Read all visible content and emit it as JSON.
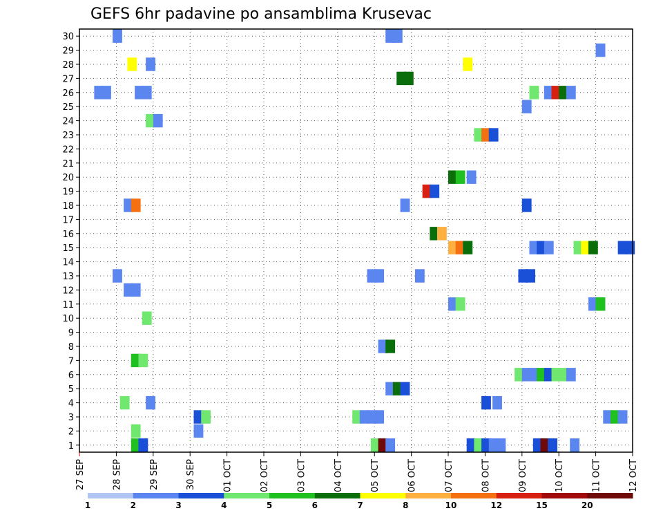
{
  "chart_data": {
    "type": "heatmap",
    "title": "GEFS 6hr padavine po ansamblima Krusevac",
    "x_tick_labels": [
      "27 SEP",
      "28 SEP",
      "29 SEP",
      "30 SEP",
      "01 OCT",
      "02 OCT",
      "03 OCT",
      "04 OCT",
      "05 OCT",
      "06 OCT",
      "07 OCT",
      "08 OCT",
      "09 OCT",
      "10 OCT",
      "11 OCT",
      "12 OCT"
    ],
    "y_tick_labels": [
      "1",
      "2",
      "3",
      "4",
      "5",
      "6",
      "7",
      "8",
      "9",
      "10",
      "11",
      "12",
      "13",
      "14",
      "15",
      "16",
      "17",
      "18",
      "19",
      "20",
      "21",
      "22",
      "23",
      "24",
      "25",
      "26",
      "27",
      "28",
      "29",
      "30"
    ],
    "ylim": [
      1,
      30
    ],
    "grid": true,
    "legend_labels": [
      "1",
      "2",
      "3",
      "4",
      "5",
      "6",
      "7",
      "8",
      "10",
      "12",
      "15",
      "20"
    ],
    "legend_colors": [
      "#b0c4f4",
      "#5b86f0",
      "#1a4fd8",
      "#70e870",
      "#20c020",
      "#0a6e0a",
      "#ffff00",
      "#ffb040",
      "#f57010",
      "#d82010",
      "#a00a0a",
      "#6e0a0a"
    ],
    "cells": [
      [
        0.9,
        30,
        0,
        1
      ],
      [
        8.3,
        30,
        0,
        1
      ],
      [
        8.5,
        30,
        0,
        1
      ],
      [
        14.0,
        29,
        0,
        1
      ],
      [
        1.3,
        28,
        3,
        6
      ],
      [
        1.8,
        28,
        2,
        1
      ],
      [
        10.4,
        28,
        3,
        6
      ],
      [
        8.6,
        27,
        4,
        5
      ],
      [
        8.8,
        27,
        4,
        5
      ],
      [
        0.4,
        26,
        3,
        1
      ],
      [
        0.6,
        26,
        3,
        1
      ],
      [
        1.5,
        26,
        3,
        1
      ],
      [
        1.7,
        26,
        3,
        1
      ],
      [
        12.2,
        26,
        6,
        3
      ],
      [
        12.6,
        26,
        6,
        1
      ],
      [
        12.8,
        26,
        6,
        9
      ],
      [
        13.0,
        26,
        6,
        5
      ],
      [
        13.2,
        26,
        6,
        1
      ],
      [
        12.0,
        25,
        4,
        1
      ],
      [
        1.8,
        24,
        3,
        3
      ],
      [
        2.0,
        24,
        3,
        1
      ],
      [
        10.7,
        23,
        8,
        3
      ],
      [
        10.9,
        23,
        8,
        8
      ],
      [
        11.1,
        23,
        8,
        2
      ],
      [
        10.0,
        20,
        4,
        5
      ],
      [
        10.2,
        20,
        4,
        4
      ],
      [
        10.5,
        20,
        4,
        1
      ],
      [
        9.3,
        19,
        5,
        9
      ],
      [
        9.5,
        19,
        5,
        2
      ],
      [
        1.2,
        18,
        2,
        1
      ],
      [
        1.4,
        18,
        2,
        8
      ],
      [
        8.7,
        18,
        3,
        1
      ],
      [
        12.0,
        18,
        3,
        2
      ],
      [
        9.5,
        16,
        5,
        5
      ],
      [
        9.7,
        16,
        5,
        7
      ],
      [
        10.0,
        15,
        8,
        7
      ],
      [
        10.2,
        15,
        8,
        8
      ],
      [
        10.4,
        15,
        8,
        5
      ],
      [
        12.2,
        15,
        8,
        1
      ],
      [
        12.4,
        15,
        8,
        2
      ],
      [
        12.6,
        15,
        8,
        1
      ],
      [
        13.4,
        15,
        8,
        3
      ],
      [
        13.6,
        15,
        8,
        6
      ],
      [
        13.8,
        15,
        8,
        5
      ],
      [
        14.6,
        15,
        8,
        2
      ],
      [
        14.8,
        15,
        8,
        2
      ],
      [
        0.9,
        13,
        3,
        1
      ],
      [
        7.8,
        13,
        3,
        1
      ],
      [
        8.0,
        13,
        3,
        1
      ],
      [
        9.1,
        13,
        3,
        1
      ],
      [
        11.9,
        13,
        3,
        2
      ],
      [
        12.1,
        13,
        3,
        2
      ],
      [
        1.2,
        12,
        6,
        1
      ],
      [
        1.4,
        12,
        6,
        1
      ],
      [
        10.0,
        11,
        3,
        1
      ],
      [
        10.2,
        11,
        3,
        3
      ],
      [
        13.8,
        11,
        3,
        1
      ],
      [
        14.0,
        11,
        3,
        4
      ],
      [
        1.7,
        10,
        9,
        3
      ],
      [
        8.1,
        8,
        3,
        1
      ],
      [
        8.3,
        8,
        3,
        5
      ],
      [
        1.4,
        7,
        9,
        4
      ],
      [
        1.6,
        7,
        9,
        3
      ],
      [
        11.8,
        6,
        2,
        3
      ],
      [
        12.0,
        6,
        2,
        1
      ],
      [
        12.2,
        6,
        2,
        1
      ],
      [
        12.4,
        6,
        2,
        4
      ],
      [
        12.6,
        6,
        2,
        2
      ],
      [
        12.8,
        6,
        2,
        3
      ],
      [
        13.0,
        6,
        2,
        3
      ],
      [
        13.2,
        6,
        2,
        1
      ],
      [
        8.3,
        5,
        3,
        1
      ],
      [
        8.5,
        5,
        3,
        5
      ],
      [
        8.7,
        5,
        3,
        2
      ],
      [
        1.1,
        4,
        2,
        3
      ],
      [
        1.8,
        4,
        2,
        1
      ],
      [
        10.9,
        4,
        2,
        2
      ],
      [
        11.2,
        4,
        2,
        1
      ],
      [
        3.1,
        3,
        3,
        2
      ],
      [
        3.3,
        3,
        3,
        3
      ],
      [
        7.4,
        3,
        3,
        3
      ],
      [
        7.6,
        3,
        3,
        1
      ],
      [
        7.8,
        3,
        3,
        1
      ],
      [
        8.0,
        3,
        3,
        1
      ],
      [
        14.2,
        3,
        3,
        1
      ],
      [
        14.4,
        3,
        3,
        4
      ],
      [
        14.6,
        3,
        3,
        1
      ],
      [
        1.4,
        2,
        9,
        3
      ],
      [
        3.1,
        2,
        9,
        1
      ],
      [
        1.4,
        1,
        6,
        4
      ],
      [
        1.6,
        1,
        6,
        2
      ],
      [
        7.9,
        1,
        6,
        3
      ],
      [
        8.1,
        1,
        6,
        11
      ],
      [
        8.3,
        1,
        6,
        1
      ],
      [
        10.5,
        1,
        6,
        2
      ],
      [
        10.7,
        1,
        6,
        3
      ],
      [
        10.9,
        1,
        6,
        2
      ],
      [
        11.1,
        1,
        6,
        1
      ],
      [
        11.3,
        1,
        6,
        1
      ],
      [
        12.3,
        1,
        6,
        2
      ],
      [
        12.5,
        1,
        6,
        11
      ],
      [
        12.7,
        1,
        6,
        2
      ],
      [
        13.3,
        1,
        6,
        1
      ]
    ]
  }
}
